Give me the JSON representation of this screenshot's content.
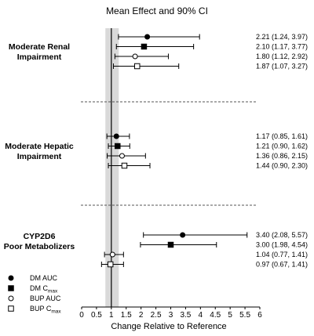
{
  "chart_data": {
    "type": "forest",
    "title": "Mean Effect and 90% CI",
    "xlabel": "Change Relative to Reference",
    "xlim": [
      0,
      6
    ],
    "x_ticks": [
      "0",
      "0.5",
      "1",
      "1.5",
      "2",
      "2.5",
      "3",
      "3.5",
      "4",
      "4.5",
      "5",
      "5.5",
      "6"
    ],
    "reference_line": 1,
    "reference_band": [
      0.8,
      1.25
    ],
    "groups": [
      {
        "name_lines": [
          "Moderate Renal",
          "Impairment"
        ],
        "rows": [
          {
            "series": "DM AUC",
            "estimate": 2.21,
            "lower": 1.24,
            "upper": 3.97,
            "label": "2.21 (1.24, 3.97)"
          },
          {
            "series": "DM Cmax",
            "estimate": 2.1,
            "lower": 1.17,
            "upper": 3.77,
            "label": "2.10 (1.17, 3.77)"
          },
          {
            "series": "BUP AUC",
            "estimate": 1.8,
            "lower": 1.12,
            "upper": 2.92,
            "label": "1.80 (1.12, 2.92)"
          },
          {
            "series": "BUP Cmax",
            "estimate": 1.87,
            "lower": 1.07,
            "upper": 3.27,
            "label": "1.87 (1.07, 3.27)"
          }
        ]
      },
      {
        "name_lines": [
          "Moderate Hepatic",
          "Impairment"
        ],
        "rows": [
          {
            "series": "DM AUC",
            "estimate": 1.17,
            "lower": 0.85,
            "upper": 1.61,
            "label": "1.17 (0.85, 1.61)"
          },
          {
            "series": "DM Cmax",
            "estimate": 1.21,
            "lower": 0.9,
            "upper": 1.62,
            "label": "1.21 (0.90, 1.62)"
          },
          {
            "series": "BUP AUC",
            "estimate": 1.36,
            "lower": 0.86,
            "upper": 2.15,
            "label": "1.36 (0.86, 2.15)"
          },
          {
            "series": "BUP Cmax",
            "estimate": 1.44,
            "lower": 0.9,
            "upper": 2.3,
            "label": "1.44 (0.90, 2.30)"
          }
        ]
      },
      {
        "name_lines": [
          "CYP2D6",
          "Poor Metabolizers"
        ],
        "rows": [
          {
            "series": "DM AUC",
            "estimate": 3.4,
            "lower": 2.08,
            "upper": 5.57,
            "label": "3.40 (2.08, 5.57)"
          },
          {
            "series": "DM Cmax",
            "estimate": 3.0,
            "lower": 1.98,
            "upper": 4.54,
            "label": "3.00 (1.98, 4.54)"
          },
          {
            "series": "BUP AUC",
            "estimate": 1.04,
            "lower": 0.77,
            "upper": 1.41,
            "label": "1.04 (0.77, 1.41)"
          },
          {
            "series": "BUP Cmax",
            "estimate": 0.97,
            "lower": 0.67,
            "upper": 1.41,
            "label": "0.97 (0.67, 1.41)"
          }
        ]
      }
    ],
    "legend": [
      {
        "series": "DM AUC",
        "text": "DM AUC",
        "sub": "",
        "marker": "filled-circle"
      },
      {
        "series": "DM Cmax",
        "text": "DM C",
        "sub": "max",
        "marker": "filled-square"
      },
      {
        "series": "BUP AUC",
        "text": "BUP AUC",
        "sub": "",
        "marker": "open-circle"
      },
      {
        "series": "BUP Cmax",
        "text": "BUP C",
        "sub": "max",
        "marker": "open-square"
      }
    ],
    "legend_position": "bottom-left"
  }
}
